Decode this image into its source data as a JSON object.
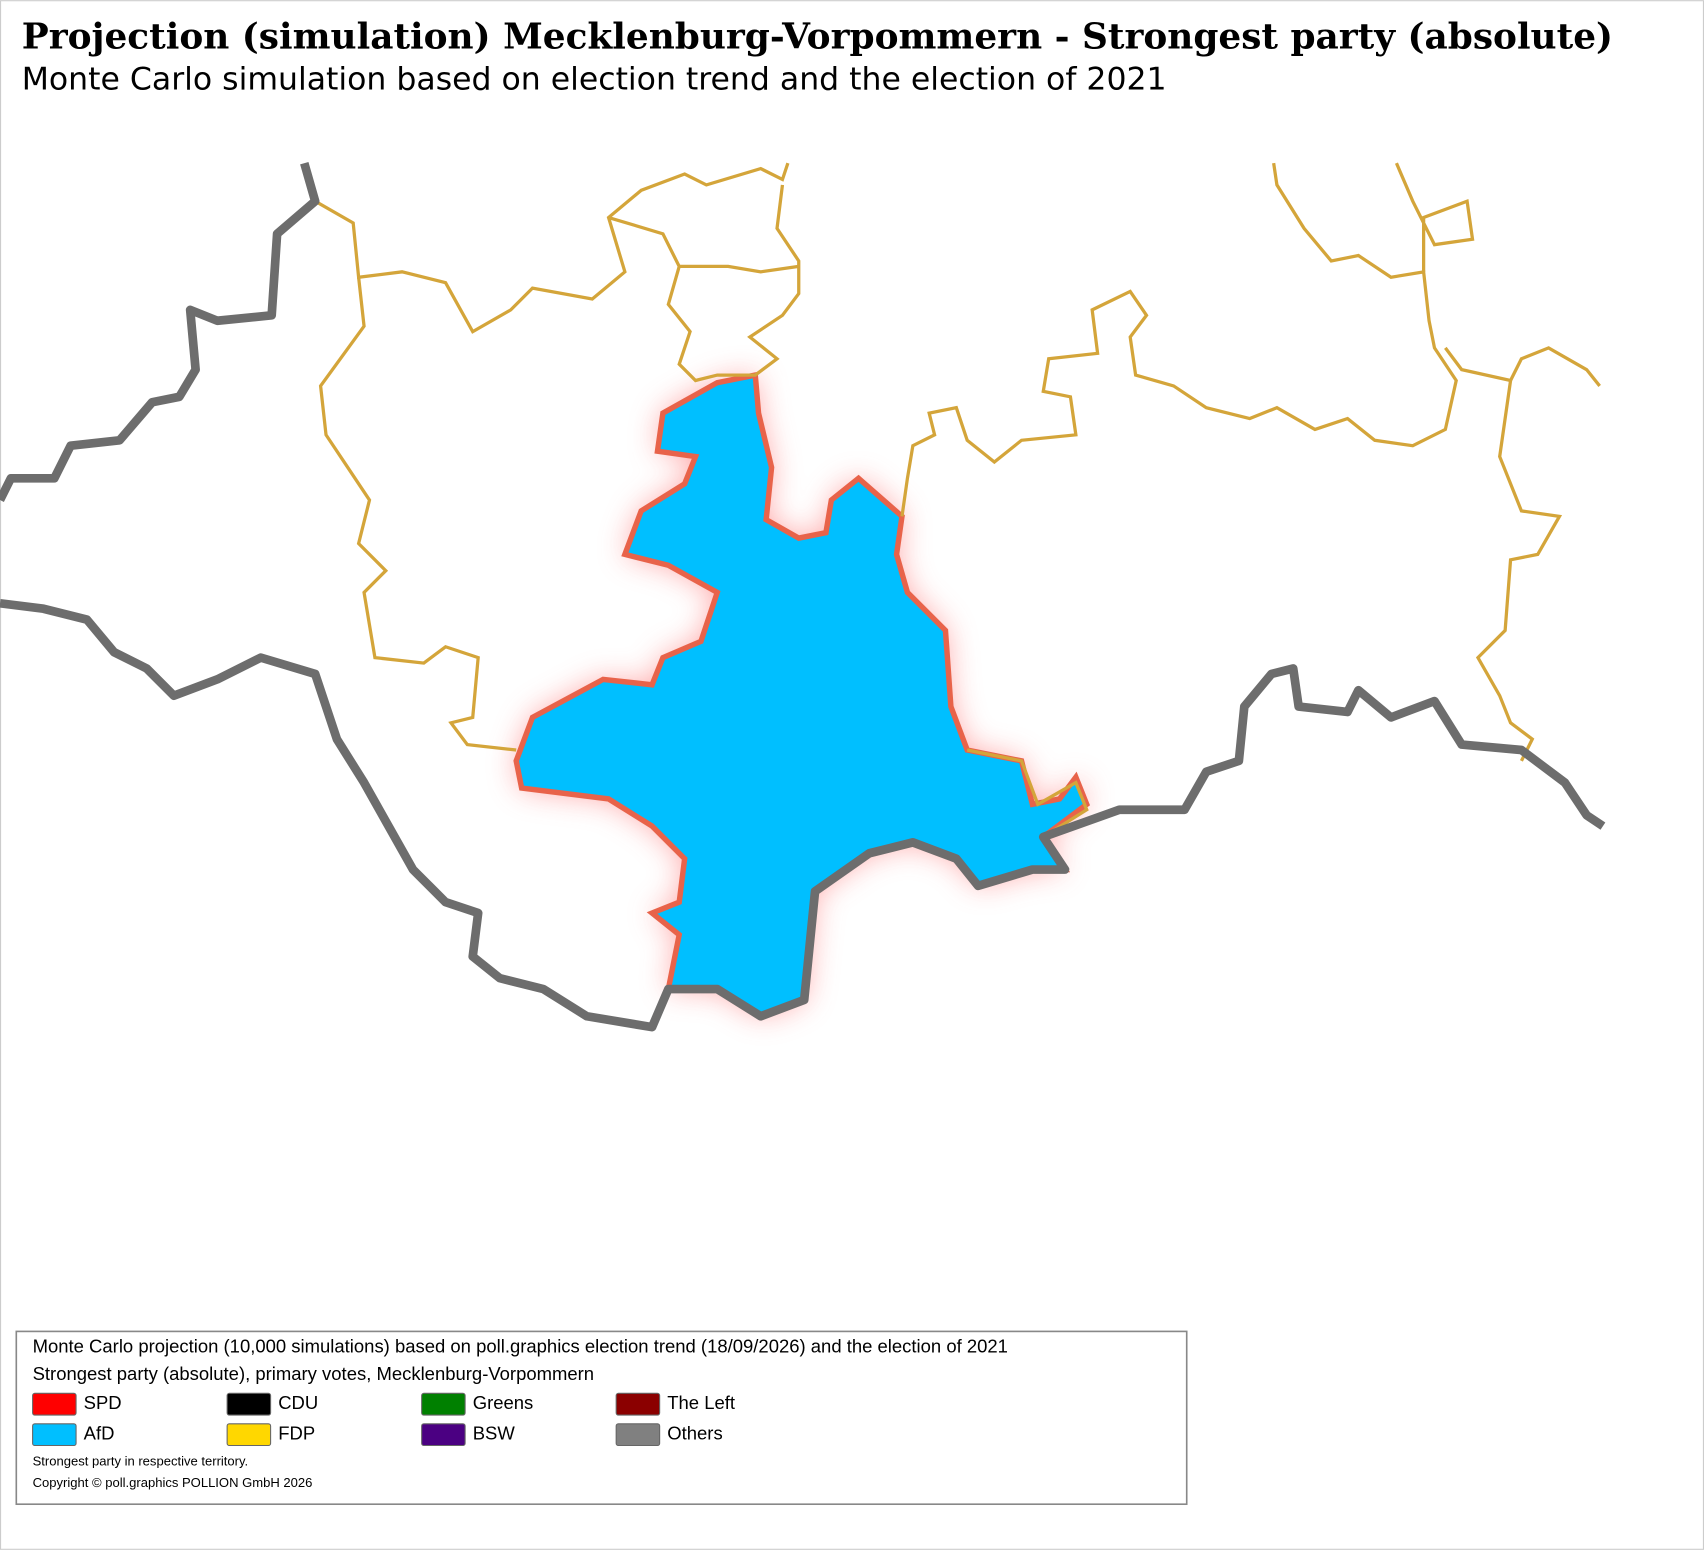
{
  "header": {
    "title": "Projection (simulation) Mecklenburg-Vorpommern - Strongest party (absolute)",
    "subtitle": "Monte Carlo simulation based on election trend and the election of 2021"
  },
  "legend": {
    "lines": [
      "Monte Carlo projection (10,000 simulations) based on poll.graphics election trend (18/09/2026) and the election of 2021",
      "Strongest party (absolute), primary votes, Mecklenburg-Vorpommern"
    ],
    "entries": [
      {
        "name": "SPD",
        "color": "#ff0000"
      },
      {
        "name": "CDU",
        "color": "#000000"
      },
      {
        "name": "Greens",
        "color": "#008000"
      },
      {
        "name": "The Left",
        "color": "#8b0000"
      },
      {
        "name": "AfD",
        "color": "#00bfff"
      },
      {
        "name": "FDP",
        "color": "#ffd700"
      },
      {
        "name": "BSW",
        "color": "#4b0082"
      },
      {
        "name": "Others",
        "color": "#808080"
      }
    ],
    "notes": [
      "Strongest party in respective territory.",
      "Copyright © poll.graphics POLLION GmbH 2026"
    ]
  }
}
